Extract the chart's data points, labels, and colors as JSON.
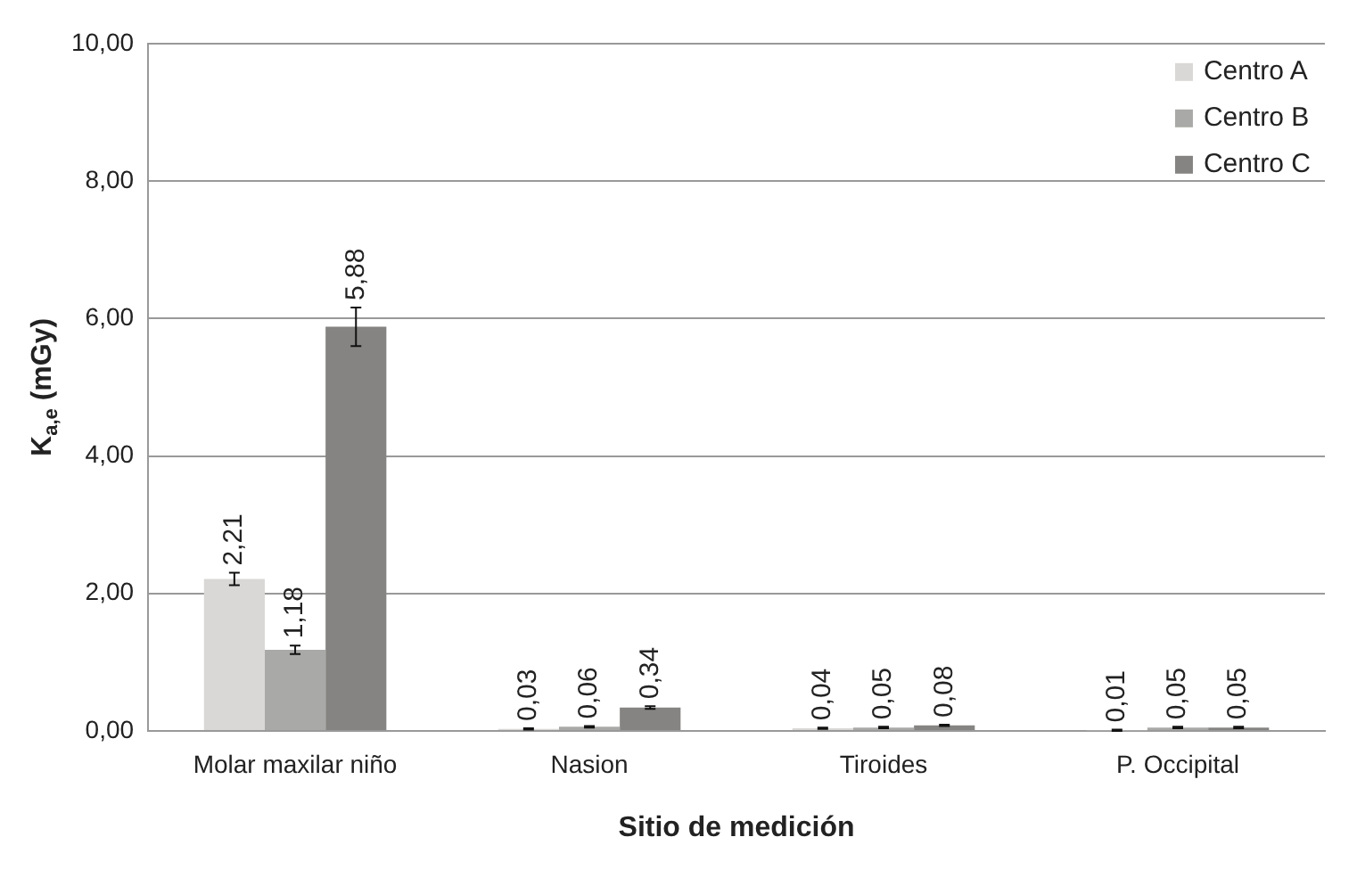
{
  "chart_data": {
    "type": "bar",
    "xlabel": "Sitio de medición",
    "ylabel": "K$_{a,e}$ (mGy)",
    "categories": [
      "Molar maxilar niño",
      "Nasion",
      "Tiroides",
      "P. Occipital"
    ],
    "series": [
      {
        "name": "Centro A",
        "color": "#d9d8d6",
        "values": [
          2.21,
          0.03,
          0.04,
          0.01
        ],
        "errors": [
          0.09,
          0.01,
          0.01,
          0.01
        ],
        "value_labels": [
          "2,21",
          "0,03",
          "0,04",
          "0,01"
        ]
      },
      {
        "name": "Centro B",
        "color": "#a9a9a7",
        "values": [
          1.18,
          0.06,
          0.05,
          0.05
        ],
        "errors": [
          0.06,
          0.01,
          0.01,
          0.01
        ],
        "value_labels": [
          "1,18",
          "0,06",
          "0,05",
          "0,05"
        ]
      },
      {
        "name": "Centro C",
        "color": "#858482",
        "values": [
          5.88,
          0.34,
          0.08,
          0.05
        ],
        "errors": [
          0.28,
          0.02,
          0.01,
          0.01
        ],
        "value_labels": [
          "5,88",
          "0,34",
          "0,08",
          "0,05"
        ]
      }
    ],
    "ylim": [
      0,
      10
    ],
    "yticks": [
      {
        "value": 0,
        "label": "0,00"
      },
      {
        "value": 2,
        "label": "2,00"
      },
      {
        "value": 4,
        "label": "4,00"
      },
      {
        "value": 6,
        "label": "6,00"
      },
      {
        "value": 8,
        "label": "8,00"
      },
      {
        "value": 10,
        "label": "10,00"
      }
    ],
    "grid": "y",
    "legend": "top right"
  }
}
